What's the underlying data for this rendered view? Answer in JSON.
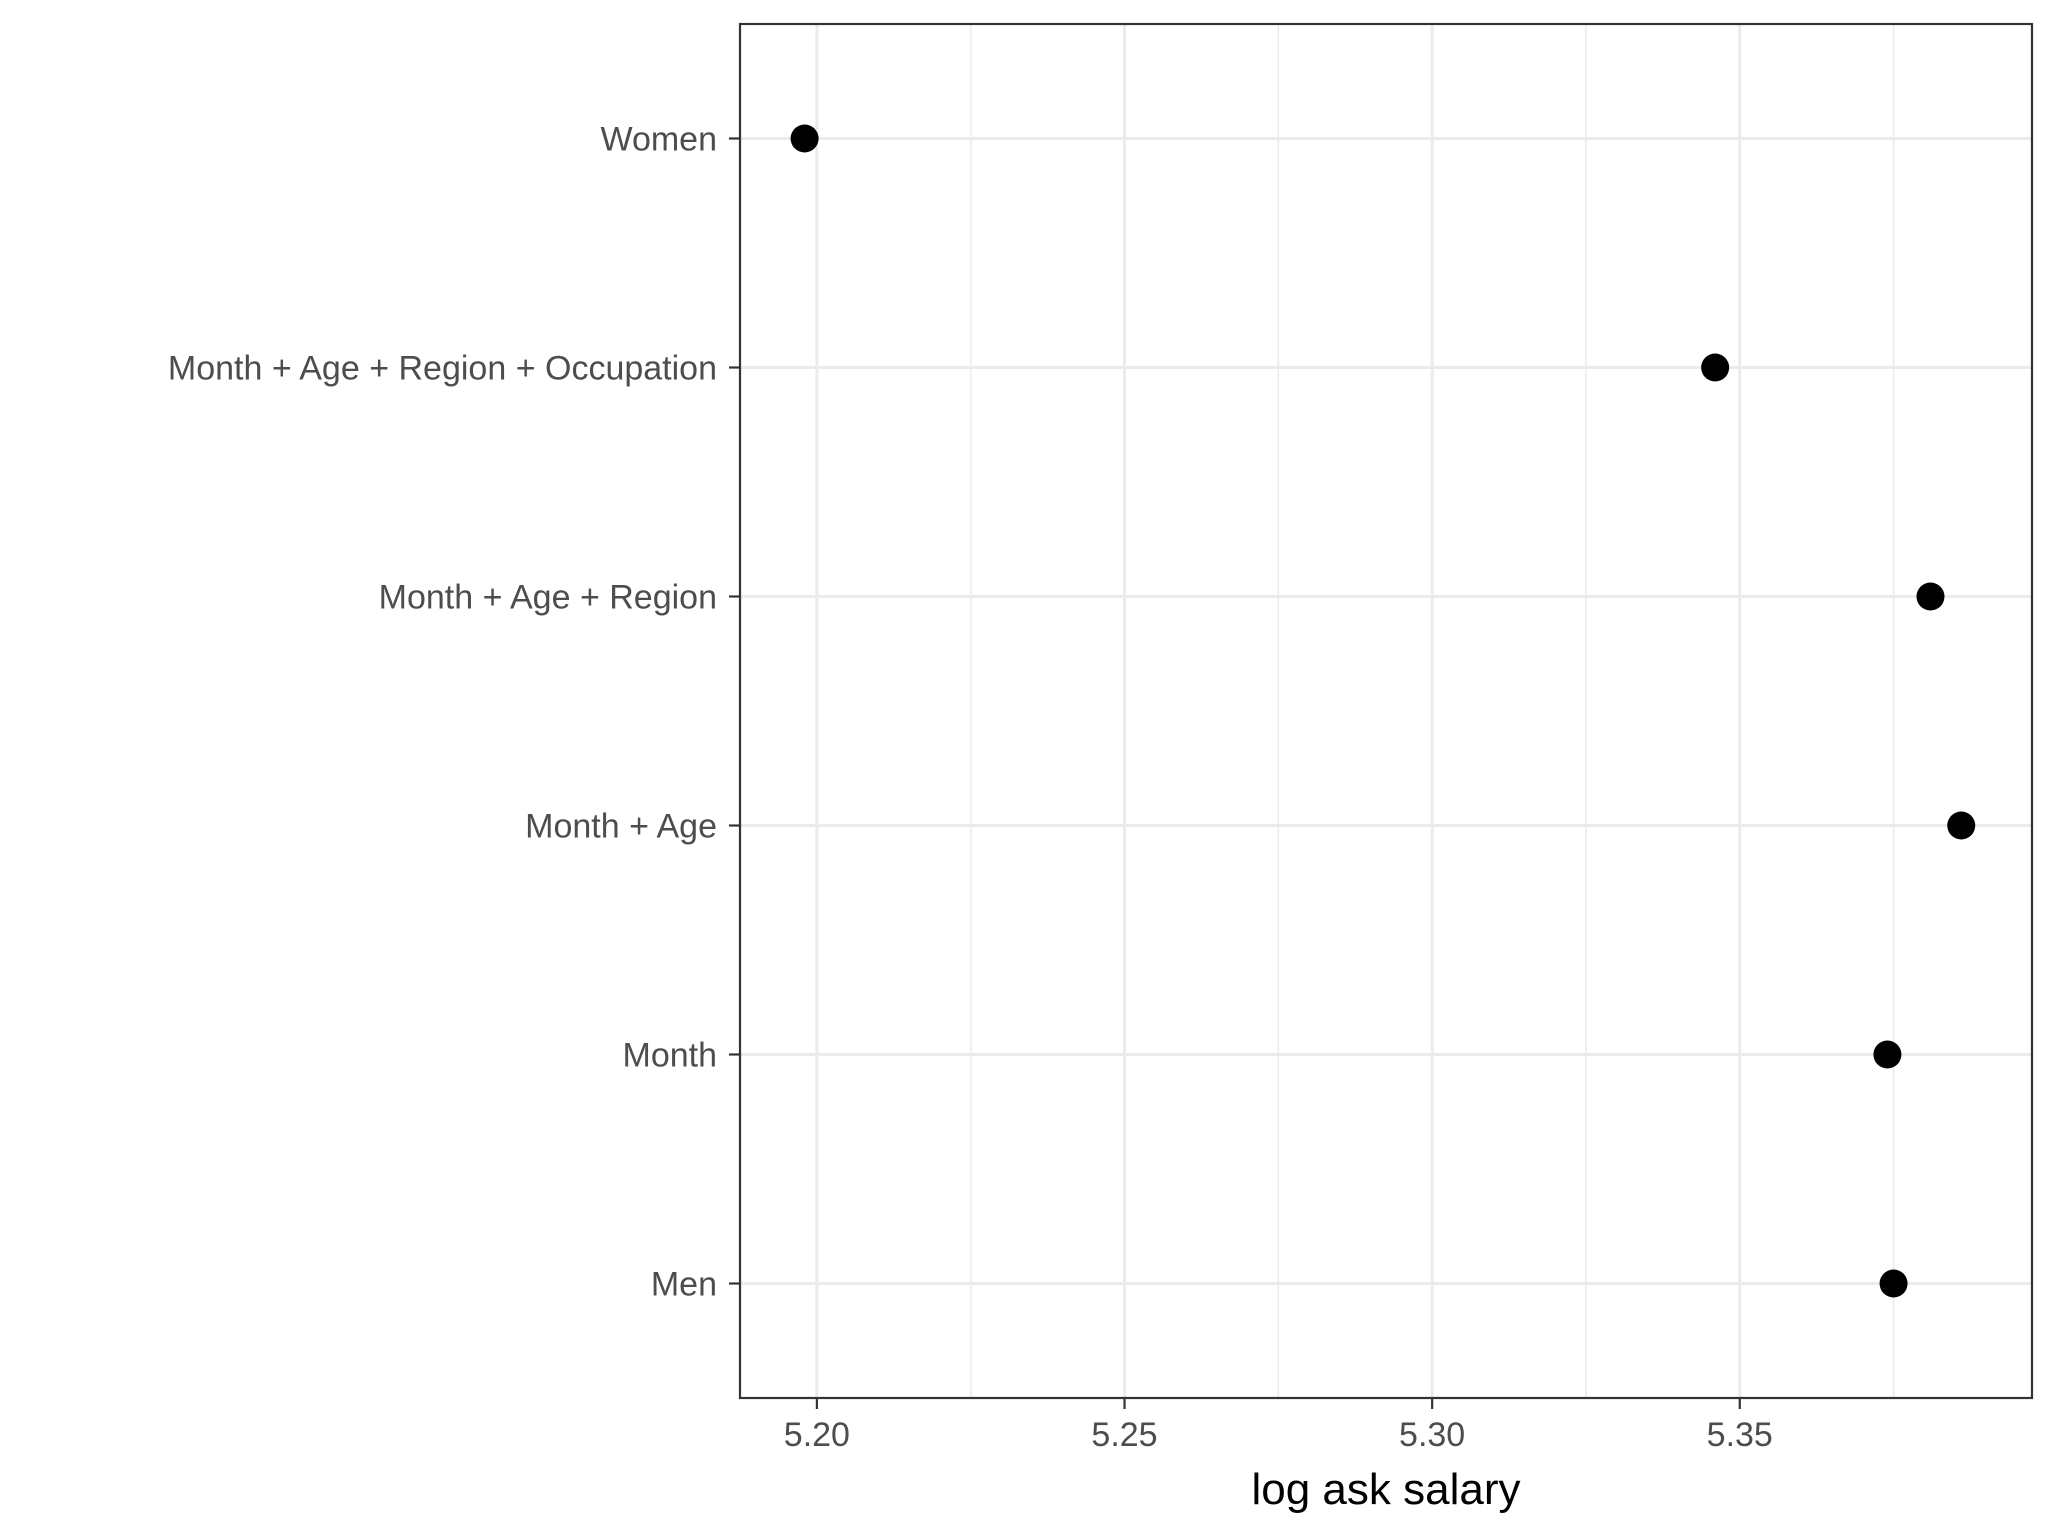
{
  "chart_data": {
    "type": "scatter",
    "title": "",
    "xlabel": "log ask salary",
    "ylabel": "",
    "categories": [
      "Men",
      "Month",
      "Month + Age",
      "Month + Age + Region",
      "Month + Age + Region + Occupation",
      "Women"
    ],
    "values": [
      5.375,
      5.374,
      5.386,
      5.381,
      5.346,
      5.198
    ],
    "x_ticks": [
      "5.20",
      "5.25",
      "5.30",
      "5.35"
    ],
    "x_tick_values": [
      5.2,
      5.25,
      5.3,
      5.35
    ],
    "xlim": [
      5.1875,
      5.3975
    ],
    "grid": true,
    "legend": "none",
    "colors": {
      "point": "#000000",
      "grid": "#ebebeb",
      "panel_border": "#333333",
      "tick_text": "#4d4d4d"
    }
  }
}
